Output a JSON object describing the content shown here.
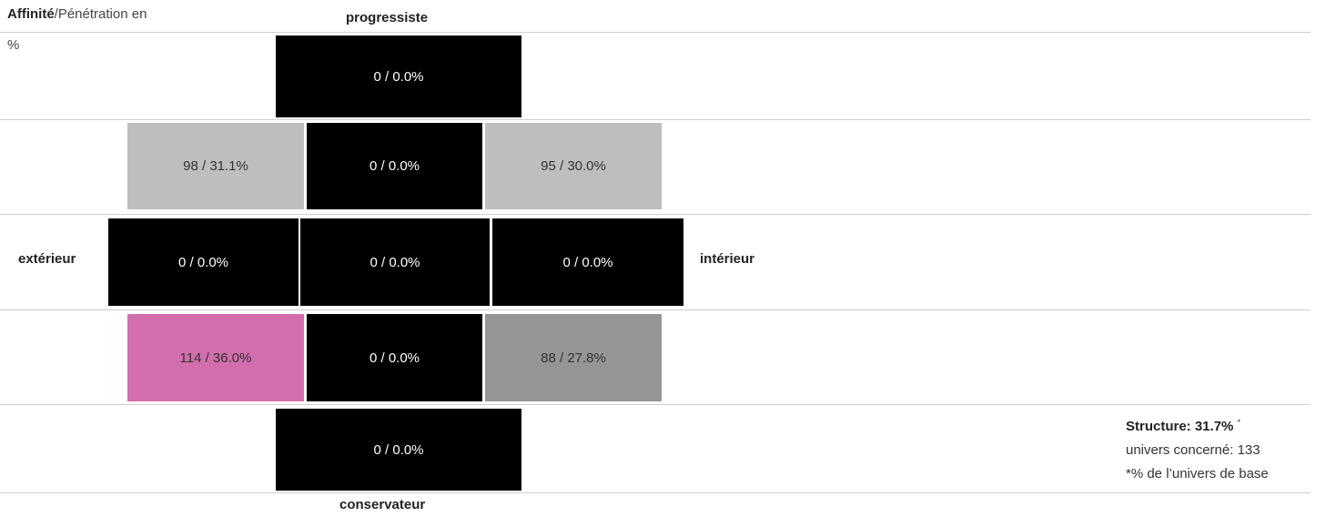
{
  "header": {
    "affinity_label": "Affinité",
    "rest_label": "/Pénétration en",
    "percent_sign": "%"
  },
  "axes": {
    "top": "progressiste",
    "bottom": "conservateur",
    "left": "extérieur",
    "right": "intérieur"
  },
  "cells": {
    "r1c3": "0 / 0.0%",
    "r2c1": "98 / 31.1%",
    "r2c3": "0 / 0.0%",
    "r2c5": "95 / 30.0%",
    "r3c2": "0 / 0.0%",
    "r3c3": "0 / 0.0%",
    "r3c4": "0 / 0.0%",
    "r4c1": "114 / 36.0%",
    "r4c3": "0 / 0.0%",
    "r4c5": "88 / 27.8%",
    "r5c3": "0 / 0.0%"
  },
  "colors": {
    "black": "#000000",
    "light_gray": "#bdbec0",
    "mid_gray": "#959598",
    "pink": "#d26ead",
    "line": "#cfcfcf"
  },
  "summary": {
    "structure": "Structure: 31.7%",
    "asterisk": "*",
    "universe": "univers concerné: 133",
    "footnote": "*% de l’univers de base"
  }
}
